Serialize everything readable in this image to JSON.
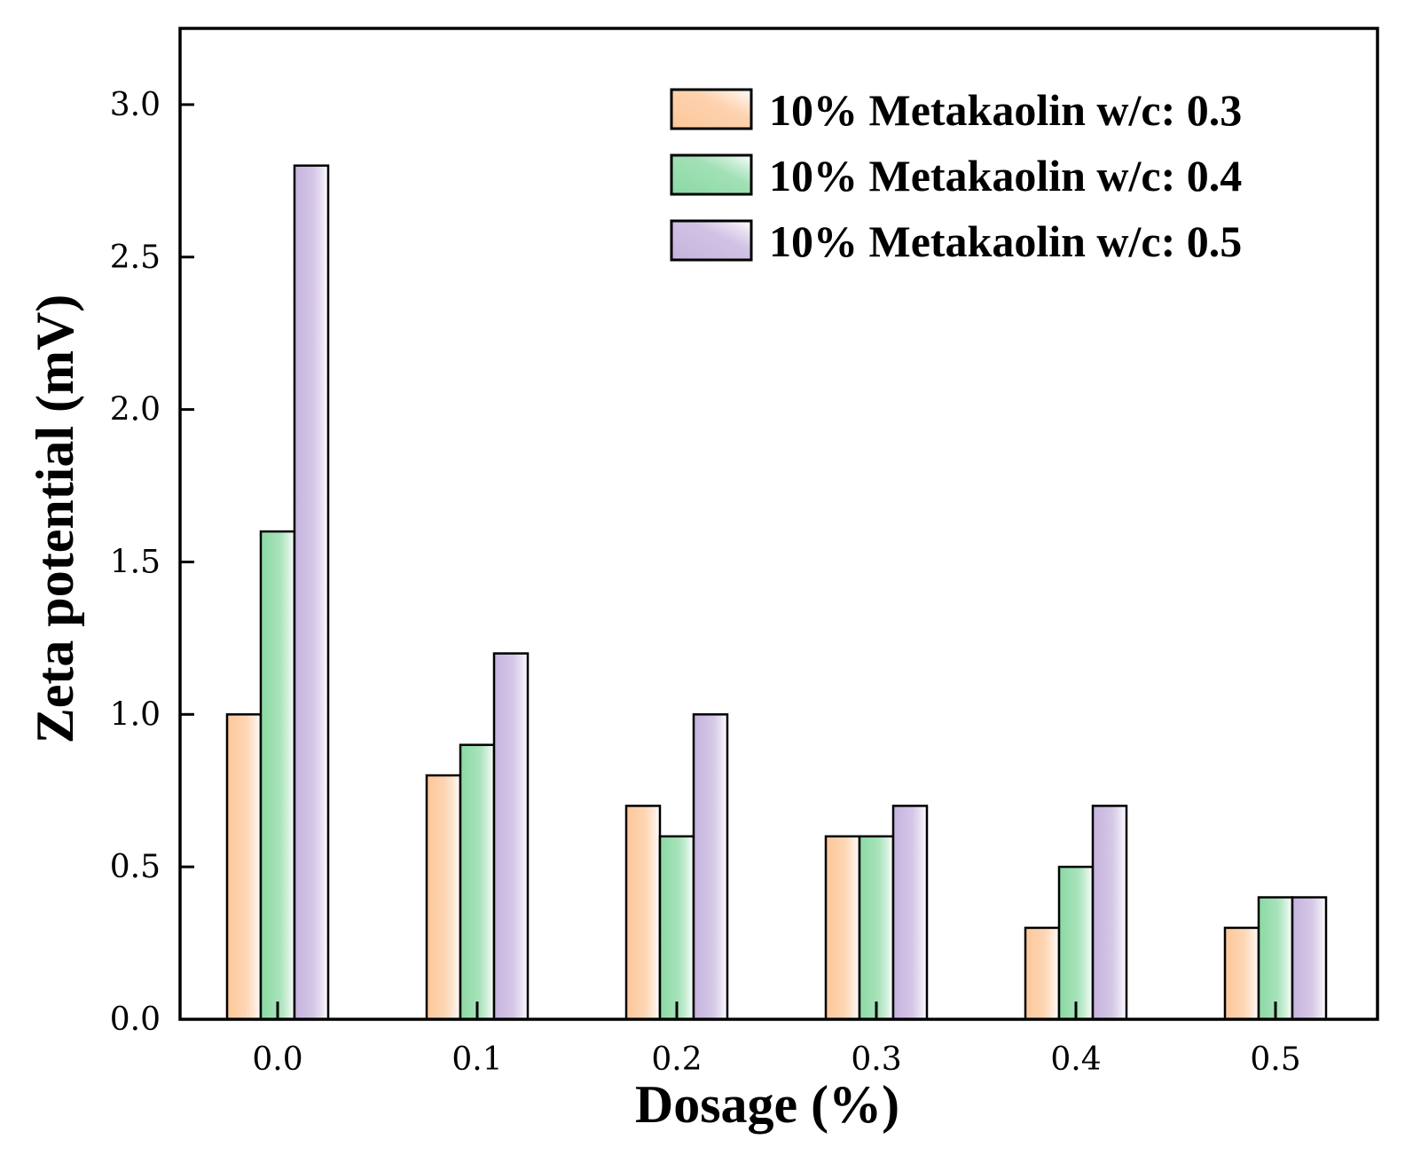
{
  "chart_data": {
    "type": "bar",
    "title": "",
    "xlabel": "Dosage (%)",
    "ylabel": "Zeta potential (mV)",
    "categories": [
      "0.0",
      "0.1",
      "0.2",
      "0.3",
      "0.4",
      "0.5"
    ],
    "ylim": [
      0,
      3.25
    ],
    "yticks": [
      0.0,
      0.5,
      1.0,
      1.5,
      2.0,
      2.5,
      3.0
    ],
    "ytick_labels": [
      "0.0",
      "0.5",
      "1.0",
      "1.5",
      "2.0",
      "2.5",
      "3.0"
    ],
    "grid": false,
    "legend_position": "top-right",
    "series": [
      {
        "name": "10% Metakaolin w/c: 0.3",
        "values": [
          1.0,
          0.8,
          0.7,
          0.6,
          0.3,
          0.3
        ],
        "color": "#fdc79a"
      },
      {
        "name": "10% Metakaolin w/c: 0.4",
        "values": [
          1.6,
          0.9,
          0.6,
          0.6,
          0.5,
          0.4
        ],
        "color": "#8ad9a3"
      },
      {
        "name": "10% Metakaolin w/c: 0.5",
        "values": [
          2.8,
          1.2,
          1.0,
          0.7,
          0.7,
          0.4
        ],
        "color": "#c6b3de"
      }
    ]
  }
}
